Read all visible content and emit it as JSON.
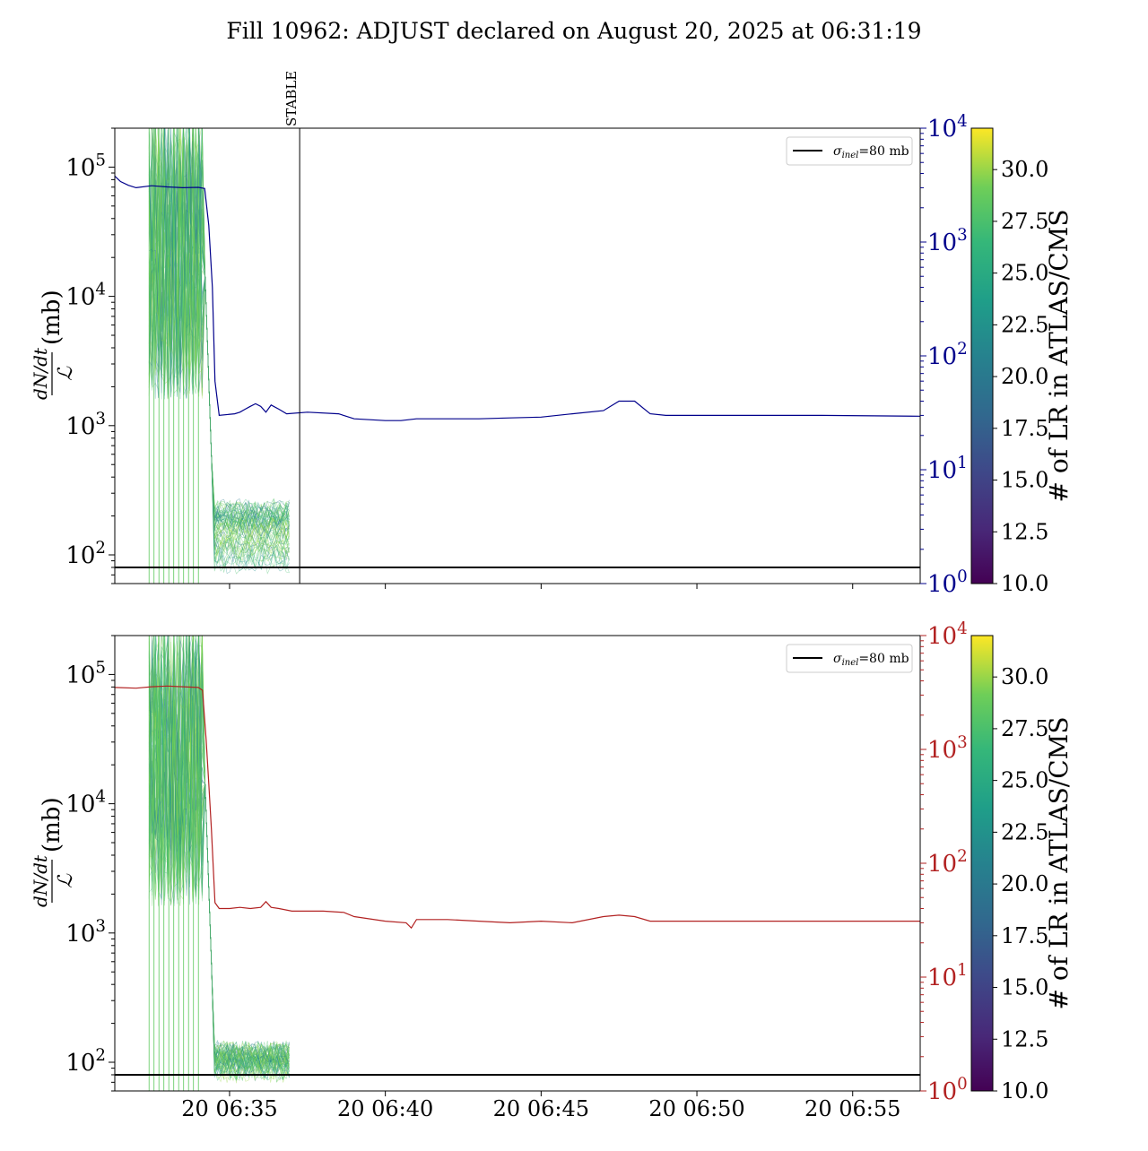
{
  "figure": {
    "title": "Fill 10962: ADJUST declared on August 20, 2025 at 06:31:19"
  },
  "colors": {
    "top_secondary": "#00008b",
    "bottom_secondary": "#b22222",
    "reference_line": "#000000",
    "colormap": "viridis",
    "fill_line_green": "#5cc85c"
  },
  "chart_data": [
    {
      "type": "line",
      "panel": "top",
      "ylabel_numerator": "dN/dt",
      "ylabel_denominator": "ℒ",
      "ylabel_unit": "(mb)",
      "yscale": "log",
      "ylim": [
        60,
        200000
      ],
      "y_ticks": [
        {
          "value": 100,
          "base": "10",
          "exp": "2"
        },
        {
          "value": 1000,
          "base": "10",
          "exp": "3"
        },
        {
          "value": 10000,
          "base": "10",
          "exp": "4"
        },
        {
          "value": 100000,
          "base": "10",
          "exp": "5"
        }
      ],
      "secondary_yscale": "log",
      "secondary_ylim": [
        1,
        10000
      ],
      "secondary_ticks": [
        {
          "value": 1,
          "base": "10",
          "exp": "0"
        },
        {
          "value": 10,
          "base": "10",
          "exp": "1"
        },
        {
          "value": 100,
          "base": "10",
          "exp": "2"
        },
        {
          "value": 1000,
          "base": "10",
          "exp": "3"
        },
        {
          "value": 10000,
          "base": "10",
          "exp": "4"
        }
      ],
      "xlim": [
        "06:31:19",
        "06:57:10"
      ],
      "x_ticks": [
        "06:35",
        "06:40",
        "06:45",
        "06:50",
        "06:55"
      ],
      "x_tick_labels_visible": false,
      "reference_line": {
        "value": 80,
        "label_sym": "σ",
        "label_sub": "inel",
        "label_rest": "=80 mb"
      },
      "legend_position": "top-right",
      "annotation": {
        "text": "STABLE",
        "x": "06:37:15"
      },
      "secondary_series": [
        [
          "06:31:19",
          3800
        ],
        [
          "06:31:30",
          3400
        ],
        [
          "06:31:45",
          3150
        ],
        [
          "06:32:00",
          3000
        ],
        [
          "06:32:30",
          3120
        ],
        [
          "06:33:00",
          3050
        ],
        [
          "06:33:30",
          3000
        ],
        [
          "06:34:00",
          3020
        ],
        [
          "06:34:12",
          2950
        ],
        [
          "06:34:20",
          1400
        ],
        [
          "06:34:27",
          400
        ],
        [
          "06:34:32",
          60
        ],
        [
          "06:34:40",
          30
        ],
        [
          "06:35:10",
          31
        ],
        [
          "06:35:20",
          32
        ],
        [
          "06:35:30",
          34
        ],
        [
          "06:35:40",
          36
        ],
        [
          "06:35:50",
          38
        ],
        [
          "06:36:00",
          36
        ],
        [
          "06:36:10",
          32
        ],
        [
          "06:36:20",
          37
        ],
        [
          "06:36:35",
          34
        ],
        [
          "06:36:50",
          31
        ],
        [
          "06:37:30",
          32
        ],
        [
          "06:38:30",
          31
        ],
        [
          "06:39:00",
          28
        ],
        [
          "06:40:00",
          27
        ],
        [
          "06:40:30",
          27
        ],
        [
          "06:41:00",
          28
        ],
        [
          "06:42:00",
          28
        ],
        [
          "06:43:00",
          28
        ],
        [
          "06:44:00",
          28.5
        ],
        [
          "06:45:00",
          29
        ],
        [
          "06:46:00",
          31
        ],
        [
          "06:47:00",
          33
        ],
        [
          "06:47:30",
          40
        ],
        [
          "06:48:00",
          40
        ],
        [
          "06:48:30",
          31
        ],
        [
          "06:49:00",
          30
        ],
        [
          "06:50:00",
          30
        ],
        [
          "06:52:00",
          30
        ],
        [
          "06:54:00",
          30
        ],
        [
          "06:57:10",
          29.5
        ]
      ]
    },
    {
      "type": "line",
      "panel": "bottom",
      "ylabel_numerator": "dN/dt",
      "ylabel_denominator": "ℒ",
      "ylabel_unit": "(mb)",
      "yscale": "log",
      "ylim": [
        60,
        200000
      ],
      "y_ticks": [
        {
          "value": 100,
          "base": "10",
          "exp": "2"
        },
        {
          "value": 1000,
          "base": "10",
          "exp": "3"
        },
        {
          "value": 10000,
          "base": "10",
          "exp": "4"
        },
        {
          "value": 100000,
          "base": "10",
          "exp": "5"
        }
      ],
      "secondary_yscale": "log",
      "secondary_ylim": [
        1,
        10000
      ],
      "secondary_ticks": [
        {
          "value": 1,
          "base": "10",
          "exp": "0"
        },
        {
          "value": 10,
          "base": "10",
          "exp": "1"
        },
        {
          "value": 100,
          "base": "10",
          "exp": "2"
        },
        {
          "value": 1000,
          "base": "10",
          "exp": "3"
        },
        {
          "value": 10000,
          "base": "10",
          "exp": "4"
        }
      ],
      "xlim": [
        "06:31:19",
        "06:57:10"
      ],
      "x_ticks": [
        "06:35",
        "06:40",
        "06:45",
        "06:50",
        "06:55"
      ],
      "x_tick_labels": [
        "20 06:35",
        "20 06:40",
        "20 06:45",
        "20 06:50",
        "20 06:55"
      ],
      "reference_line": {
        "value": 80,
        "label_sym": "σ",
        "label_sub": "inel",
        "label_rest": "=80 mb"
      },
      "legend_position": "top-right",
      "secondary_series": [
        [
          "06:31:19",
          3500
        ],
        [
          "06:32:00",
          3450
        ],
        [
          "06:32:30",
          3550
        ],
        [
          "06:33:00",
          3600
        ],
        [
          "06:33:30",
          3550
        ],
        [
          "06:34:00",
          3500
        ],
        [
          "06:34:08",
          3300
        ],
        [
          "06:34:15",
          1200
        ],
        [
          "06:34:20",
          500
        ],
        [
          "06:34:25",
          200
        ],
        [
          "06:34:32",
          45
        ],
        [
          "06:34:40",
          40
        ],
        [
          "06:35:00",
          40
        ],
        [
          "06:35:20",
          41
        ],
        [
          "06:35:40",
          40
        ],
        [
          "06:36:00",
          41
        ],
        [
          "06:36:10",
          46
        ],
        [
          "06:36:20",
          41
        ],
        [
          "06:36:35",
          40
        ],
        [
          "06:37:00",
          38
        ],
        [
          "06:38:00",
          38
        ],
        [
          "06:38:40",
          37
        ],
        [
          "06:39:00",
          34
        ],
        [
          "06:40:00",
          31
        ],
        [
          "06:40:40",
          30
        ],
        [
          "06:40:50",
          27
        ],
        [
          "06:41:00",
          32
        ],
        [
          "06:42:00",
          32
        ],
        [
          "06:43:00",
          31
        ],
        [
          "06:44:00",
          30
        ],
        [
          "06:45:00",
          31
        ],
        [
          "06:46:00",
          30
        ],
        [
          "06:47:00",
          34
        ],
        [
          "06:47:30",
          35
        ],
        [
          "06:48:00",
          34
        ],
        [
          "06:48:30",
          31
        ],
        [
          "06:50:00",
          31
        ],
        [
          "06:52:00",
          31
        ],
        [
          "06:54:00",
          31
        ],
        [
          "06:57:10",
          31
        ]
      ]
    }
  ],
  "colorbar": {
    "label": "# of LR in ATLAS/CMS",
    "min": 10,
    "max": 32,
    "ticks": [
      "10.0",
      "12.5",
      "15.0",
      "17.5",
      "20.0",
      "22.5",
      "25.0",
      "27.5",
      "30.0"
    ]
  }
}
